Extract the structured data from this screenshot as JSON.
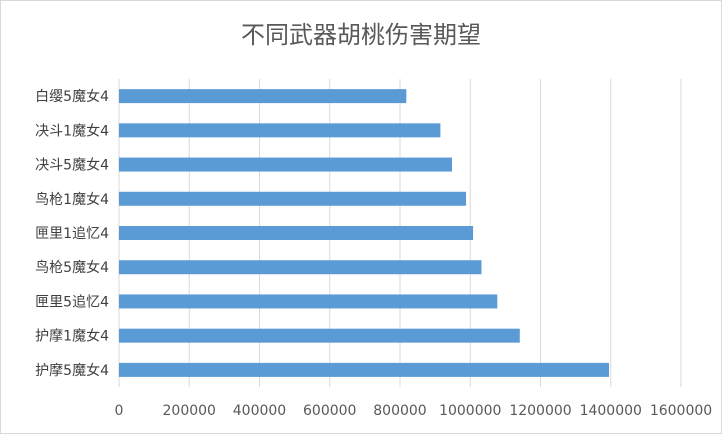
{
  "chart_data": {
    "type": "bar",
    "orientation": "horizontal",
    "title": "不同武器胡桃伤害期望",
    "categories": [
      "白缨5魔女4",
      "决斗1魔女4",
      "决斗5魔女4",
      "鸟枪1魔女4",
      "匣里1追忆4",
      "鸟枪5魔女4",
      "匣里5追忆4",
      "护摩1魔女4",
      "护摩5魔女4"
    ],
    "values": [
      818000,
      915000,
      948000,
      988000,
      1008000,
      1032000,
      1077000,
      1141000,
      1395000
    ],
    "xlim": [
      0,
      1600000
    ],
    "xticks": [
      "0",
      "200000",
      "400000",
      "600000",
      "800000",
      "1000000",
      "1200000",
      "1400000",
      "1600000"
    ],
    "grid": true,
    "bar_color": "#5b9bd5",
    "grid_color": "#d9d9d9"
  }
}
